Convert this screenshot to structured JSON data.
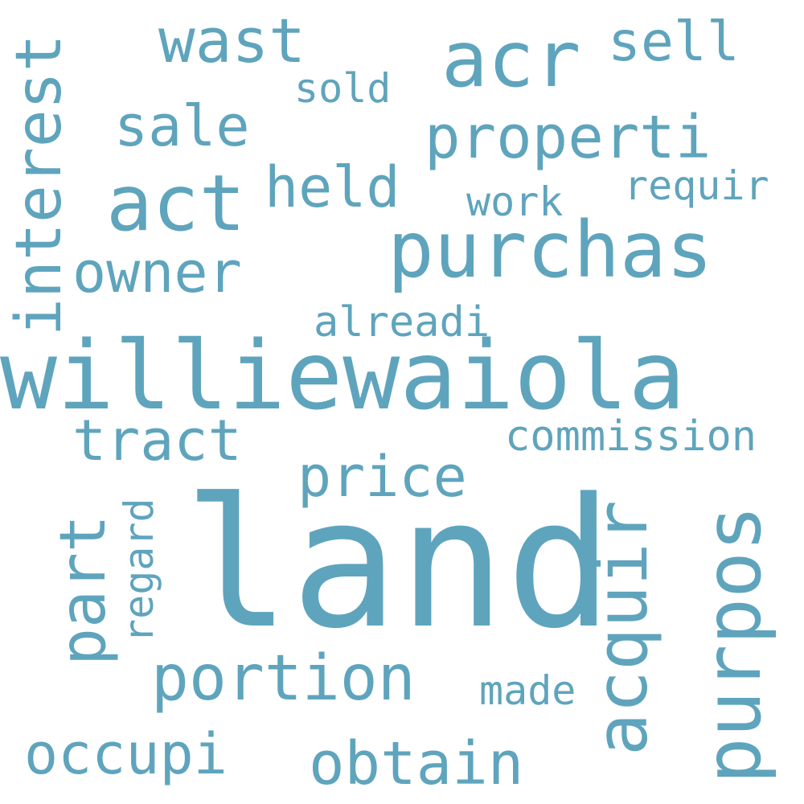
{
  "word_cloud": {
    "color": "#5fa4bd",
    "background": "#ffffff",
    "words": [
      {
        "text": "land"
      },
      {
        "text": "williewaiola"
      },
      {
        "text": "purchas"
      },
      {
        "text": "purpos"
      },
      {
        "text": "acr"
      },
      {
        "text": "act"
      },
      {
        "text": "acquir"
      },
      {
        "text": "portion"
      },
      {
        "text": "interest"
      },
      {
        "text": "part"
      },
      {
        "text": "wast"
      },
      {
        "text": "properti"
      },
      {
        "text": "obtain"
      },
      {
        "text": "occupi"
      },
      {
        "text": "tract"
      },
      {
        "text": "sale"
      },
      {
        "text": "held"
      },
      {
        "text": "owner"
      },
      {
        "text": "price"
      },
      {
        "text": "sell"
      },
      {
        "text": "commission"
      },
      {
        "text": "alreadi"
      },
      {
        "text": "requir"
      },
      {
        "text": "regard"
      },
      {
        "text": "made"
      },
      {
        "text": "work"
      },
      {
        "text": "sold"
      }
    ]
  }
}
